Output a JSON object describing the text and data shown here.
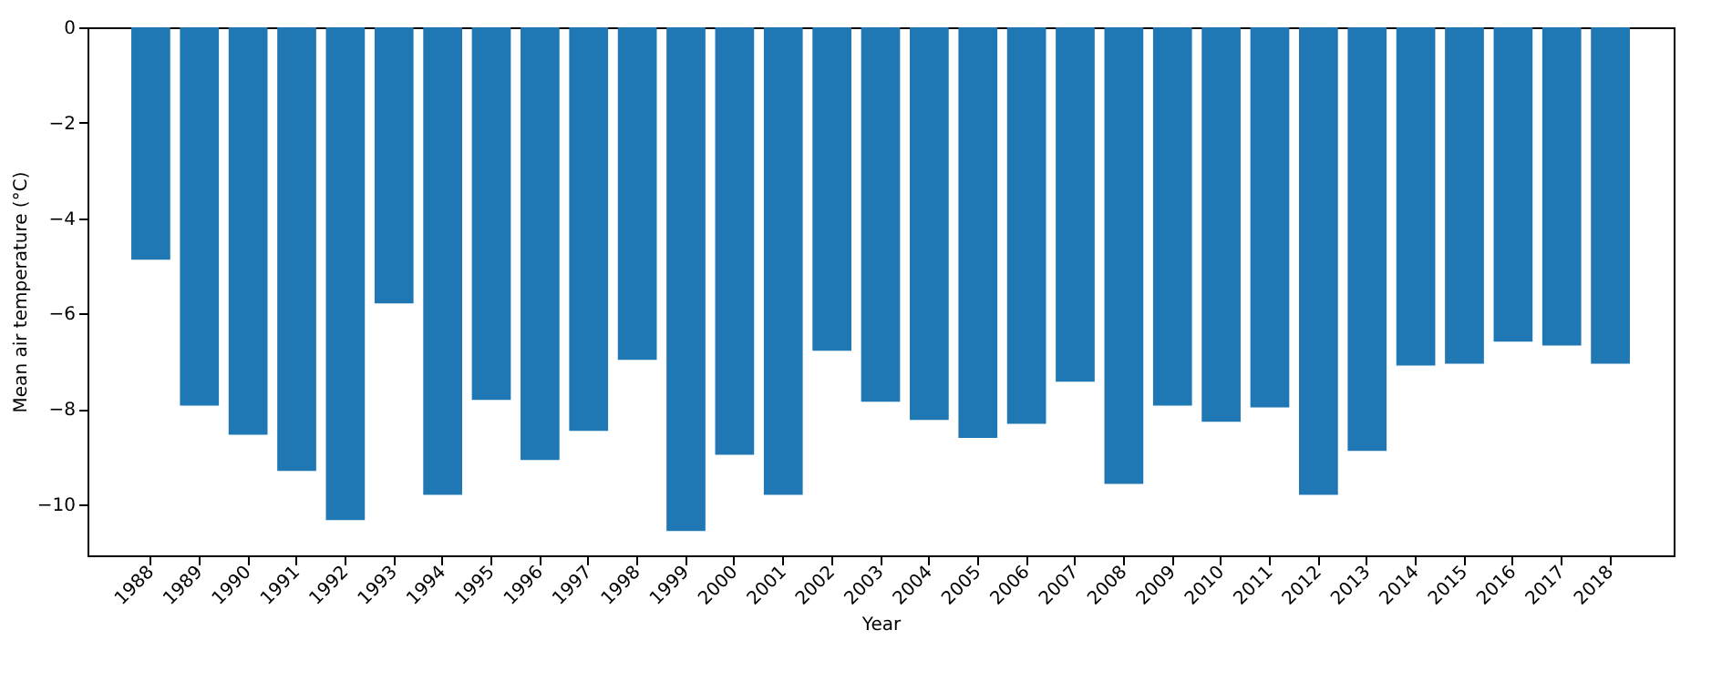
{
  "chart_data": {
    "type": "bar",
    "xlabel": "Year",
    "ylabel": "Mean air temperature (°C)",
    "categories": [
      "1988",
      "1989",
      "1990",
      "1991",
      "1992",
      "1993",
      "1994",
      "1995",
      "1996",
      "1997",
      "1998",
      "1999",
      "2000",
      "2001",
      "2002",
      "2003",
      "2004",
      "2005",
      "2006",
      "2007",
      "2008",
      "2009",
      "2010",
      "2011",
      "2012",
      "2013",
      "2014",
      "2015",
      "2016",
      "2017",
      "2018"
    ],
    "values": [
      -4.87,
      -7.93,
      -8.54,
      -9.3,
      -10.33,
      -5.79,
      -9.8,
      -7.81,
      -9.07,
      -8.46,
      -6.97,
      -10.56,
      -8.96,
      -9.8,
      -6.78,
      -7.85,
      -8.23,
      -8.61,
      -8.31,
      -7.43,
      -9.57,
      -7.93,
      -8.27,
      -7.97,
      -9.8,
      -8.88,
      -7.09,
      -7.05,
      -6.59,
      -6.67,
      -7.05
    ],
    "color": "#1f77b4",
    "ylim": [
      -11.07,
      0
    ],
    "yticks": [
      0,
      -2,
      -4,
      -6,
      -8,
      -10
    ],
    "grid": false
  }
}
